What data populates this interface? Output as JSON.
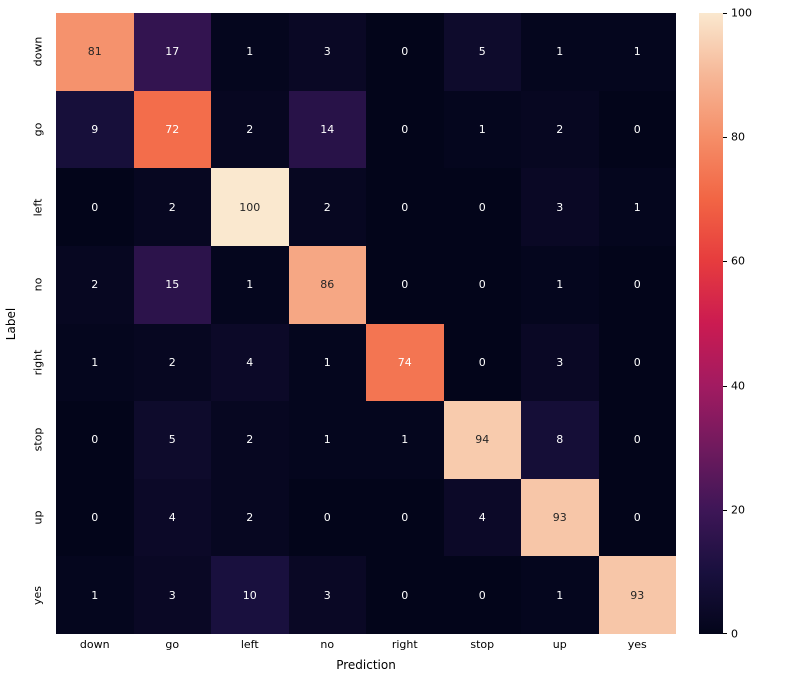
{
  "chart_data": {
    "type": "heatmap",
    "title": "",
    "xlabel": "Prediction",
    "ylabel": "Label",
    "x_categories": [
      "down",
      "go",
      "left",
      "no",
      "right",
      "stop",
      "up",
      "yes"
    ],
    "y_categories": [
      "down",
      "go",
      "left",
      "no",
      "right",
      "stop",
      "up",
      "yes"
    ],
    "matrix": [
      [
        81,
        17,
        1,
        3,
        0,
        5,
        1,
        1
      ],
      [
        9,
        72,
        2,
        14,
        0,
        1,
        2,
        0
      ],
      [
        0,
        2,
        100,
        2,
        0,
        0,
        3,
        1
      ],
      [
        2,
        15,
        1,
        86,
        0,
        0,
        1,
        0
      ],
      [
        1,
        2,
        4,
        1,
        74,
        0,
        3,
        0
      ],
      [
        0,
        5,
        2,
        1,
        1,
        94,
        8,
        0
      ],
      [
        0,
        4,
        2,
        0,
        0,
        4,
        93,
        0
      ],
      [
        1,
        3,
        10,
        3,
        0,
        0,
        1,
        93
      ]
    ],
    "vmin": 0,
    "vmax": 100,
    "colormap": "rocket",
    "colormap_stops": [
      "#03051A",
      "#19103E",
      "#3E1657",
      "#701A5E",
      "#A21B61",
      "#CB1B51",
      "#E63C3E",
      "#F26544",
      "#F58E68",
      "#F6B797",
      "#FAE8CF"
    ],
    "colorbar_ticks": [
      0,
      20,
      40,
      60,
      80,
      100
    ],
    "annotation_colors": {
      "light": "#ffffff",
      "dark": "#262626"
    },
    "legend_position": "right-colorbar",
    "grid": false
  }
}
